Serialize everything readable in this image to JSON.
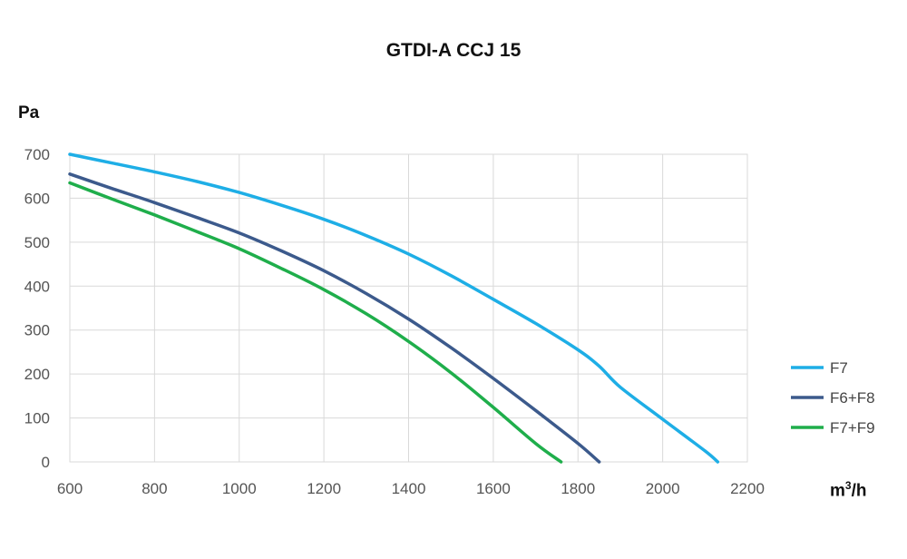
{
  "chart_data": {
    "type": "line",
    "title": "GTDI-A CCJ 15",
    "ylabel": "Pa",
    "xlabel": {
      "base": "m",
      "sup": "3",
      "rest": "/h"
    },
    "xlim": [
      600,
      2200
    ],
    "ylim": [
      0,
      700
    ],
    "xticks": [
      600,
      800,
      1000,
      1200,
      1400,
      1600,
      1800,
      2000,
      2200
    ],
    "yticks": [
      0,
      100,
      200,
      300,
      400,
      500,
      600,
      700
    ],
    "grid": true,
    "legend_position": "right",
    "series": [
      {
        "name": "F7",
        "color": "#1eaee6",
        "x": [
          600,
          700,
          800,
          900,
          1000,
          1100,
          1200,
          1300,
          1400,
          1500,
          1600,
          1700,
          1800,
          1850,
          1900,
          2000,
          2100,
          2130
        ],
        "y": [
          700,
          680,
          660,
          638,
          613,
          584,
          552,
          515,
          473,
          424,
          370,
          315,
          255,
          218,
          170,
          97,
          25,
          0
        ]
      },
      {
        "name": "F6+F8",
        "color": "#3c5a8c",
        "x": [
          600,
          700,
          800,
          900,
          1000,
          1100,
          1200,
          1300,
          1400,
          1500,
          1600,
          1700,
          1800,
          1850
        ],
        "y": [
          655,
          622,
          590,
          556,
          521,
          480,
          435,
          383,
          325,
          260,
          190,
          117,
          42,
          0
        ]
      },
      {
        "name": "F7+F9",
        "color": "#1fae4b",
        "x": [
          600,
          700,
          800,
          900,
          1000,
          1100,
          1200,
          1300,
          1400,
          1500,
          1600,
          1700,
          1760
        ],
        "y": [
          635,
          598,
          562,
          524,
          485,
          440,
          392,
          337,
          274,
          203,
          124,
          42,
          0
        ]
      }
    ]
  }
}
